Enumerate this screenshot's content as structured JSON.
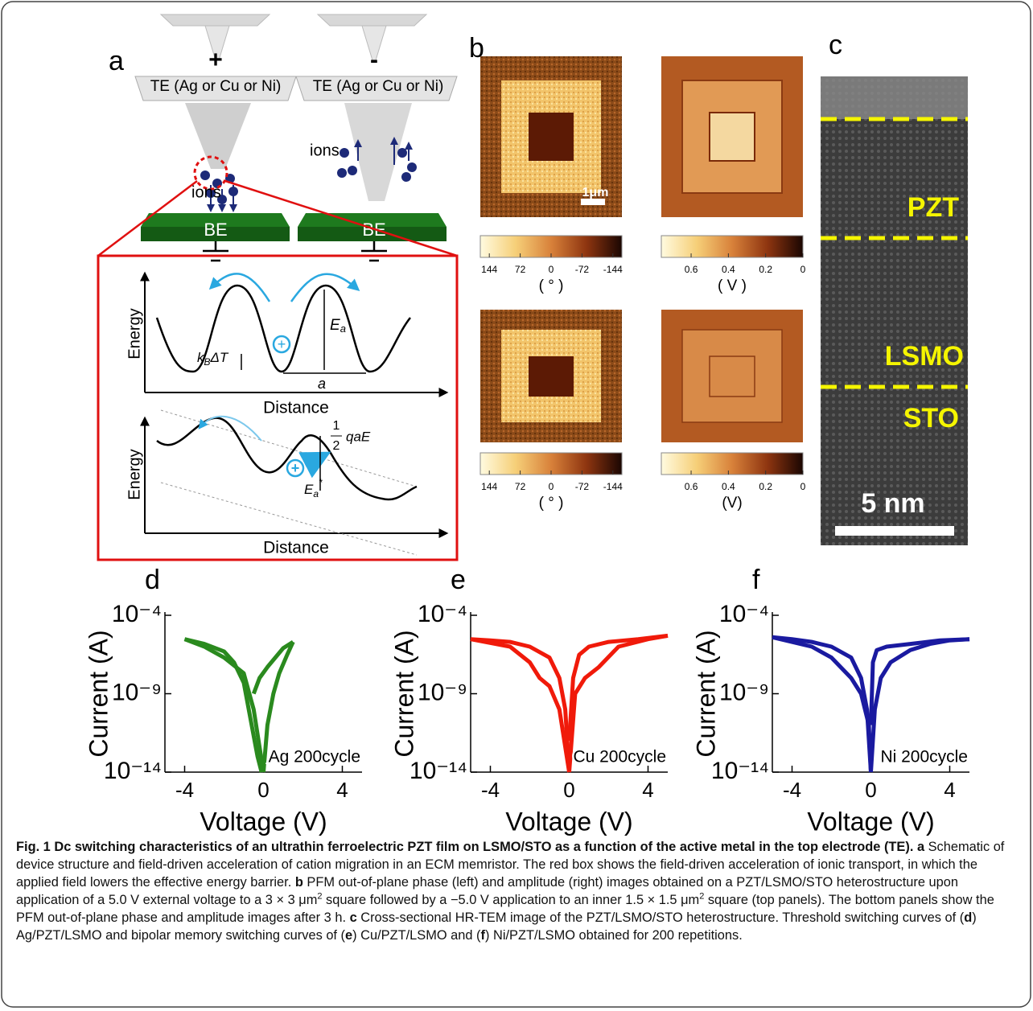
{
  "figure": {
    "panel_a": {
      "label": "a",
      "tip_signs": [
        "+",
        "-"
      ],
      "te_labels": [
        "TE (Ag or Cu or Ni)",
        "TE (Ag or Cu or Ni)"
      ],
      "ions": [
        "ions",
        "ions"
      ],
      "be": [
        "BE",
        "BE"
      ],
      "plot1": {
        "ylabel": "Energy",
        "xlabel": "Distance",
        "thermal": [
          "k",
          "B",
          "ΔT"
        ],
        "barrier": [
          "E",
          "a"
        ],
        "spacing": "a"
      },
      "plot2": {
        "ylabel": "Energy",
        "xlabel": "Distance",
        "drop": [
          "1",
          "2",
          "qaE"
        ],
        "barrier": [
          "E",
          "a",
          "*"
        ]
      }
    },
    "panel_b": {
      "label": "b",
      "scale_bar": "1μm",
      "colorbars": [
        {
          "ticks": [
            144,
            72,
            0,
            -72,
            -144
          ],
          "lim": [
            165,
            -165
          ],
          "unit": "( ° )"
        },
        {
          "ticks": [
            0.6,
            0.4,
            0.2,
            0
          ],
          "lim": [
            0.76,
            0
          ],
          "unit": "( V )"
        },
        {
          "ticks": [
            144,
            72,
            0,
            -72,
            -144
          ],
          "lim": [
            165,
            -165
          ],
          "unit": "( ° )"
        },
        {
          "ticks": [
            0.6,
            0.4,
            0.2,
            0
          ],
          "lim": [
            0.76,
            0
          ],
          "unit": "(V)"
        }
      ]
    },
    "panel_c": {
      "label": "c",
      "layers": [
        "PZT",
        "LSMO",
        "STO"
      ],
      "scale_bar": "5 nm"
    }
  },
  "caption": {
    "title": "Fig. 1 Dc switching characteristics of an ultrathin ferroelectric PZT film on LSMO/STO as a function of the active metal in the top electrode (TE).",
    "body": [
      {
        "text": "a",
        "bold": true
      },
      {
        "text": " Schematic of device structure and field-driven acceleration of cation migration in an ECM memristor. The red box shows the field-driven acceleration of ionic transport, in which the applied field lowers the effective energy barrier. "
      },
      {
        "text": "b",
        "bold": true
      },
      {
        "text": " PFM out-of-plane phase (left) and amplitude (right) images obtained on a PZT/LSMO/STO heterostructure upon application of a 5.0 V external voltage to a 3 × 3 μm"
      },
      {
        "text": "2",
        "sup": true
      },
      {
        "text": " square followed by a −5.0 V application to an inner 1.5 × 1.5 μm"
      },
      {
        "text": "2",
        "sup": true
      },
      {
        "text": " square (top panels). The bottom panels show the PFM out-of-plane phase and amplitude images after 3 h. "
      },
      {
        "text": "c",
        "bold": true
      },
      {
        "text": " Cross-sectional HR-TEM image of the PZT/LSMO/STO heterostructure. Threshold switching curves of ("
      },
      {
        "text": "d",
        "bold": true
      },
      {
        "text": ") Ag/PZT/LSMO and bipolar memory switching curves of ("
      },
      {
        "text": "e",
        "bold": true
      },
      {
        "text": ") Cu/PZT/LSMO and ("
      },
      {
        "text": "f",
        "bold": true
      },
      {
        "text": ") Ni/PZT/LSMO obtained for 200 repetitions."
      }
    ]
  },
  "chart_data": [
    {
      "type": "line",
      "panel_label": "d",
      "xlabel": "Voltage (V)",
      "ylabel": "Current (A)",
      "annotation": "Ag 200cycle",
      "xlim": [
        -5,
        5
      ],
      "xticks": [
        -4,
        0,
        4
      ],
      "ylog": true,
      "ylim": [
        1e-14,
        0.0001
      ],
      "yticks": [
        {
          "value": 1e-14,
          "label": "10⁻¹⁴"
        },
        {
          "value": 1e-09,
          "label": "10⁻⁹"
        },
        {
          "value": 0.0001,
          "label": "10⁻⁴"
        }
      ],
      "series": [
        {
          "color": "#2a8a1e",
          "x": [
            -4,
            -3,
            -2,
            -1.5,
            -1,
            -0.6,
            -0.3,
            -0.1
          ],
          "values": [
            3e-06,
            1.5e-06,
            5e-07,
            1e-07,
            5e-09,
            1e-11,
            1e-13,
            1e-14
          ]
        },
        {
          "color": "#2a8a1e",
          "x": [
            -4,
            -3,
            -2,
            -1,
            -0.5,
            0
          ],
          "values": [
            3e-06,
            1e-06,
            2e-07,
            2e-08,
            1e-10,
            1e-14
          ]
        },
        {
          "color": "#2a8a1e",
          "x": [
            0,
            0.2,
            0.5,
            0.8,
            1.2,
            1.5
          ],
          "values": [
            1e-14,
            1e-11,
            1e-09,
            2e-08,
            3e-07,
            2e-06
          ]
        },
        {
          "color": "#2a8a1e",
          "x": [
            -0.5,
            -0.2,
            0.2,
            0.6,
            1,
            1.5
          ],
          "values": [
            1e-09,
            1e-08,
            5e-08,
            2e-07,
            8e-07,
            2e-06
          ]
        }
      ]
    },
    {
      "type": "line",
      "panel_label": "e",
      "xlabel": "Voltage (V)",
      "ylabel": "Current (A)",
      "annotation": "Cu 200cycle",
      "xlim": [
        -5,
        5
      ],
      "xticks": [
        -4,
        0,
        4
      ],
      "ylog": true,
      "ylim": [
        1e-14,
        0.0001
      ],
      "yticks": [
        {
          "value": 1e-14,
          "label": "10⁻¹⁴"
        },
        {
          "value": 1e-09,
          "label": "10⁻⁹"
        },
        {
          "value": 0.0001,
          "label": "10⁻⁴"
        }
      ],
      "series": [
        {
          "color": "#f01a0a",
          "x": [
            -5,
            -4,
            -3,
            -2,
            -1,
            -0.5,
            -0.2,
            0
          ],
          "values": [
            3e-06,
            2.5e-06,
            2e-06,
            1e-06,
            2e-07,
            1e-08,
            1e-10,
            1e-14
          ]
        },
        {
          "color": "#f01a0a",
          "x": [
            -5,
            -3,
            -2,
            -1.5,
            -1,
            -0.5,
            0
          ],
          "values": [
            3e-06,
            1e-06,
            1e-07,
            1e-08,
            3e-09,
            1e-10,
            1e-14
          ]
        },
        {
          "color": "#f01a0a",
          "x": [
            0,
            0.3,
            0.8,
            1.5,
            2.5,
            4,
            5
          ],
          "values": [
            1e-14,
            1e-09,
            1e-08,
            5e-08,
            1e-06,
            3e-06,
            5e-06
          ]
        },
        {
          "color": "#f01a0a",
          "x": [
            0,
            0.2,
            0.5,
            1,
            2,
            3.5,
            5
          ],
          "values": [
            1e-12,
            1e-08,
            3e-07,
            1e-06,
            2e-06,
            3e-06,
            5e-06
          ]
        }
      ]
    },
    {
      "type": "line",
      "panel_label": "f",
      "xlabel": "Voltage (V)",
      "ylabel": "Current (A)",
      "annotation": "Ni 200cycle",
      "xlim": [
        -5,
        5
      ],
      "xticks": [
        -4,
        0,
        4
      ],
      "ylog": true,
      "ylim": [
        1e-14,
        0.0001
      ],
      "yticks": [
        {
          "value": 1e-14,
          "label": "10⁻¹⁴"
        },
        {
          "value": 1e-09,
          "label": "10⁻⁹"
        },
        {
          "value": 0.0001,
          "label": "10⁻⁴"
        }
      ],
      "series": [
        {
          "color": "#1a1aa0",
          "x": [
            -5,
            -4,
            -3,
            -2,
            -1,
            -0.5,
            -0.2,
            0
          ],
          "values": [
            4e-06,
            3e-06,
            2e-06,
            1e-06,
            2e-07,
            1e-08,
            1e-10,
            1e-14
          ]
        },
        {
          "color": "#1a1aa0",
          "x": [
            -5,
            -3,
            -2,
            -1,
            -0.5,
            -0.1,
            0
          ],
          "values": [
            4e-06,
            1e-06,
            2e-07,
            1e-08,
            1e-09,
            1e-11,
            1e-14
          ]
        },
        {
          "color": "#1a1aa0",
          "x": [
            0,
            0.2,
            0.5,
            1,
            2,
            3,
            4,
            5
          ],
          "values": [
            1e-14,
            1e-10,
            1e-08,
            1e-07,
            6e-07,
            1.5e-06,
            2.5e-06,
            3e-06
          ]
        },
        {
          "color": "#1a1aa0",
          "x": [
            0,
            0.1,
            0.3,
            0.8,
            2,
            3.5,
            5
          ],
          "values": [
            1e-11,
            1e-07,
            6e-07,
            1e-06,
            1.5e-06,
            2.5e-06,
            3e-06
          ]
        }
      ]
    }
  ]
}
